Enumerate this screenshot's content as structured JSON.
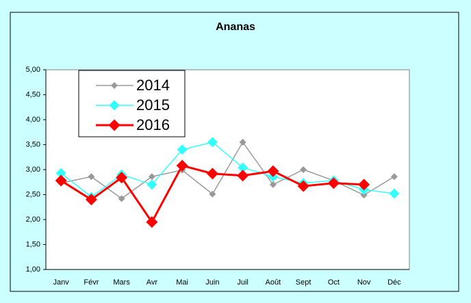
{
  "chart_data": {
    "type": "line",
    "title": "Ananas",
    "categories": [
      "Janv",
      "Févr",
      "Mars",
      "Avr",
      "Mai",
      "Juin",
      "Juil",
      "Août",
      "Sept",
      "Oct",
      "Nov",
      "Déc"
    ],
    "series": [
      {
        "name": "2014",
        "color": "#999999",
        "values": [
          2.73,
          2.86,
          2.42,
          2.86,
          2.99,
          2.51,
          3.55,
          2.7,
          3.0,
          2.78,
          2.49,
          2.86
        ]
      },
      {
        "name": "2015",
        "color": "#33ffff",
        "values": [
          2.93,
          2.45,
          2.9,
          2.7,
          3.4,
          3.55,
          3.04,
          2.86,
          2.73,
          2.78,
          2.6,
          2.52
        ]
      },
      {
        "name": "2016",
        "color": "#ff0000",
        "values": [
          2.78,
          2.4,
          2.84,
          1.95,
          3.08,
          2.92,
          2.88,
          2.97,
          2.67,
          2.73,
          2.7,
          null
        ]
      }
    ],
    "ylim": [
      1,
      5
    ],
    "yticks": [
      {
        "value": 1,
        "label": "1,00"
      },
      {
        "value": 1.5,
        "label": "1,50"
      },
      {
        "value": 2,
        "label": "2,00"
      },
      {
        "value": 2.5,
        "label": "2,50"
      },
      {
        "value": 3,
        "label": "3,00"
      },
      {
        "value": 3.5,
        "label": "3,50"
      },
      {
        "value": 4,
        "label": "4,00"
      },
      {
        "value": 4.5,
        "label": "4,50"
      },
      {
        "value": 5,
        "label": "5,00"
      }
    ],
    "legend": "upper left"
  }
}
